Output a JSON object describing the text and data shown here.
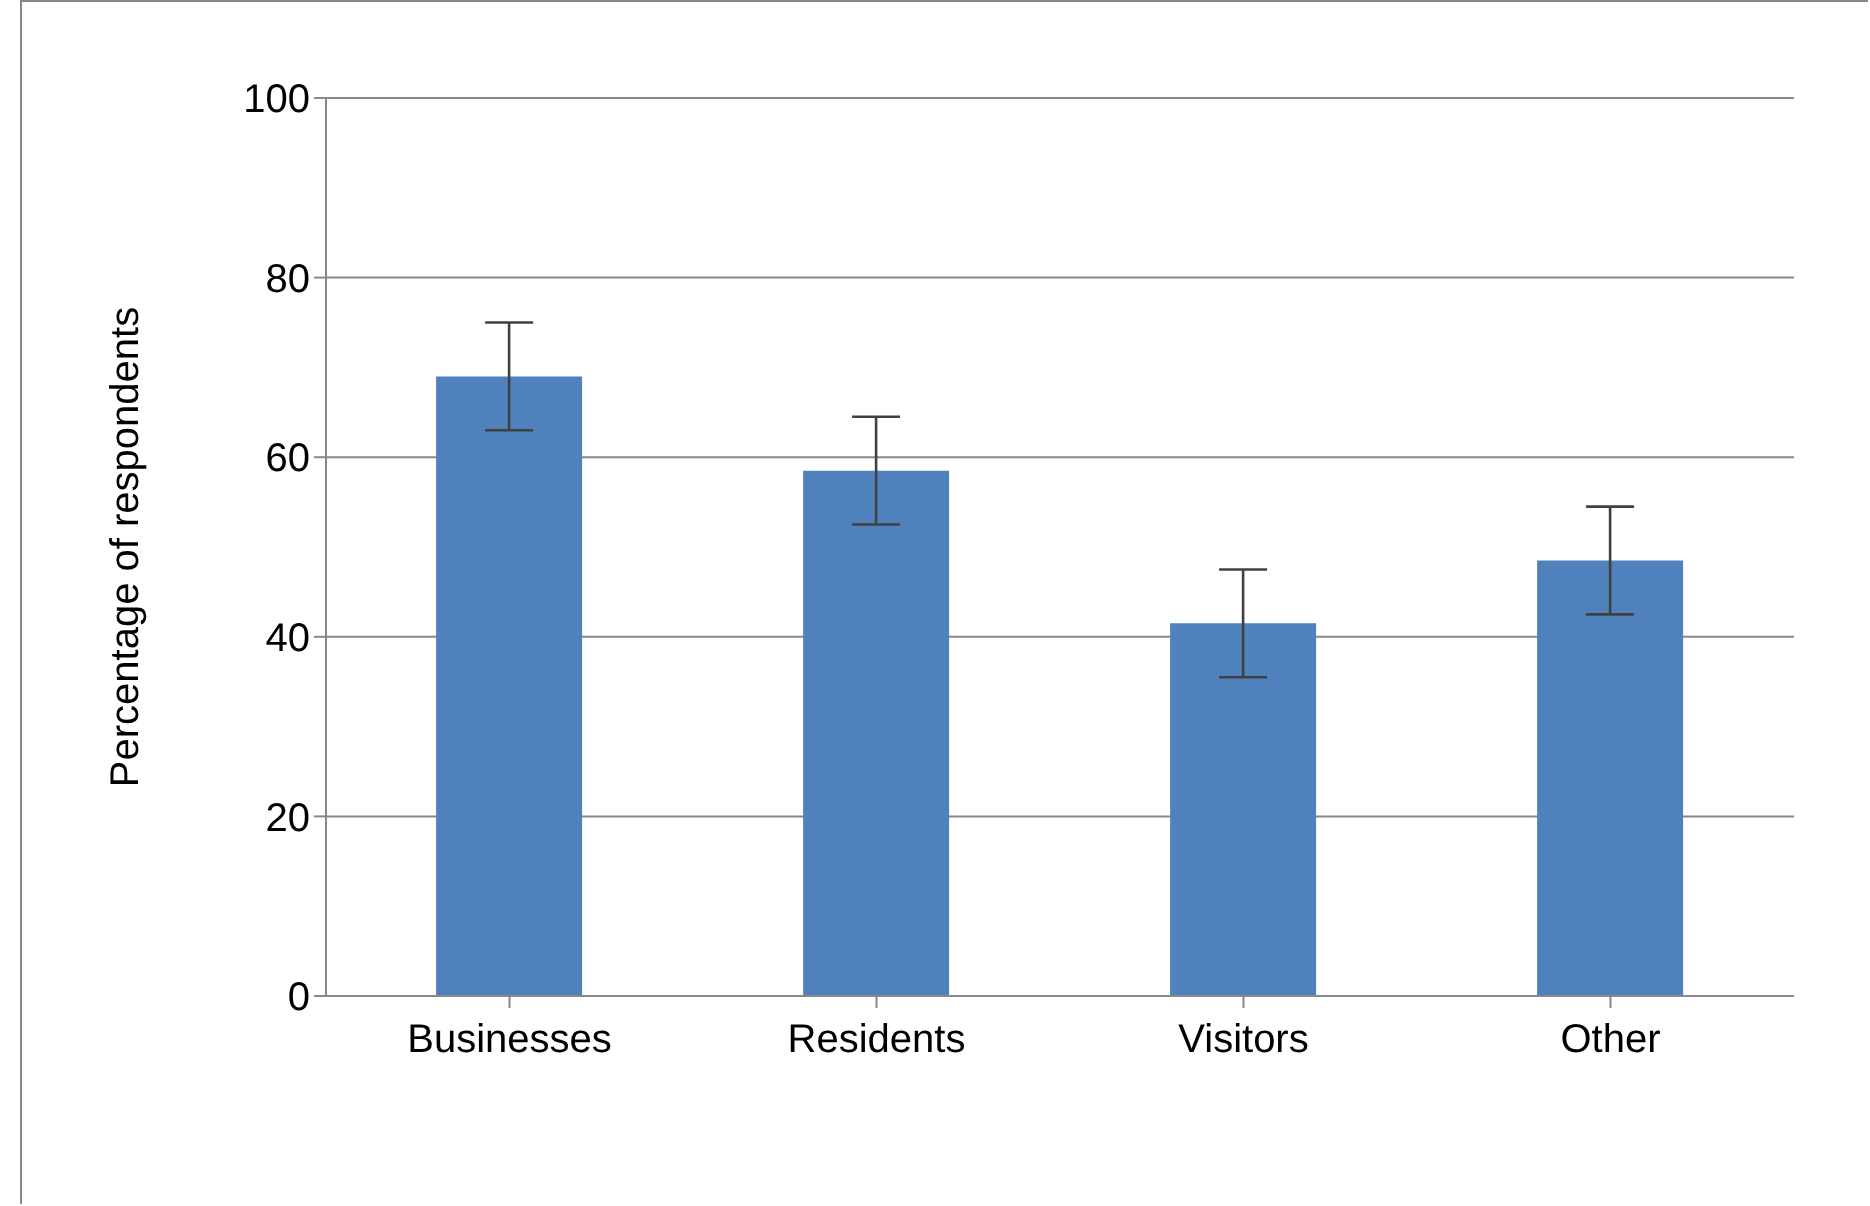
{
  "chart_data": {
    "type": "bar",
    "ylabel": "Percentage of respondents",
    "categories": [
      "Businesses",
      "Residents",
      "Visitors",
      "Other"
    ],
    "values": [
      69,
      58.5,
      41.5,
      48.5
    ],
    "errors": [
      6,
      6,
      6,
      6
    ],
    "color": "#4f81bd",
    "ylim": [
      0,
      100
    ],
    "yticks": [
      0,
      20,
      40,
      60,
      80,
      100
    ],
    "grid": "y"
  }
}
